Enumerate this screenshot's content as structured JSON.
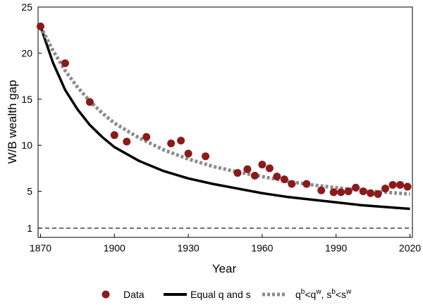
{
  "chart_data": {
    "type": "line",
    "xlabel": "Year",
    "ylabel": "W/B wealth gap",
    "xlim": [
      1869,
      2021
    ],
    "ylim": [
      0,
      25
    ],
    "xticks": [
      1870,
      1900,
      1930,
      1960,
      1990,
      2020
    ],
    "yticks": [
      1,
      5,
      10,
      15,
      20,
      25
    ],
    "grid": false,
    "legend_position": "bottom",
    "reference_line": {
      "y": 1,
      "style": "dashed",
      "color": "#000000"
    },
    "series": [
      {
        "name": "Data",
        "kind": "scatter",
        "color": "#8b1a1a",
        "x": [
          1870,
          1880,
          1890,
          1900,
          1905,
          1913,
          1923,
          1927,
          1930,
          1937,
          1950,
          1954,
          1957,
          1960,
          1963,
          1966,
          1969,
          1972,
          1978,
          1984,
          1989,
          1992,
          1995,
          1998,
          2001,
          2004,
          2007,
          2010,
          2013,
          2016,
          2019
        ],
        "y": [
          22.9,
          18.9,
          14.7,
          11.1,
          10.4,
          10.9,
          10.2,
          10.5,
          9.1,
          8.8,
          7.0,
          7.4,
          6.7,
          7.9,
          7.5,
          6.6,
          6.3,
          5.8,
          5.8,
          5.1,
          4.9,
          4.9,
          5.0,
          5.4,
          5.0,
          4.8,
          4.7,
          5.3,
          5.7,
          5.7,
          5.5
        ]
      },
      {
        "name": "Equal q and s",
        "kind": "line",
        "color": "#000000",
        "style": "solid",
        "x": [
          1870,
          1875,
          1880,
          1885,
          1890,
          1895,
          1900,
          1910,
          1920,
          1930,
          1940,
          1950,
          1960,
          1970,
          1980,
          1990,
          2000,
          2010,
          2020
        ],
        "y": [
          22.9,
          19.0,
          16.0,
          13.9,
          12.2,
          10.9,
          9.8,
          8.3,
          7.2,
          6.4,
          5.8,
          5.3,
          4.8,
          4.4,
          4.1,
          3.8,
          3.5,
          3.3,
          3.1
        ]
      },
      {
        "name": "q^b<q^w, s^b<s^w",
        "kind": "line",
        "color": "#8c8c8c",
        "style": "dotted",
        "x": [
          1870,
          1875,
          1880,
          1885,
          1890,
          1895,
          1900,
          1910,
          1920,
          1930,
          1940,
          1950,
          1960,
          1970,
          1980,
          1990,
          2000,
          2010,
          2020
        ],
        "y": [
          22.9,
          20.3,
          18.1,
          16.3,
          14.8,
          13.5,
          12.4,
          10.8,
          9.5,
          8.5,
          7.7,
          7.1,
          6.6,
          6.1,
          5.7,
          5.4,
          5.1,
          4.9,
          4.7
        ]
      }
    ]
  },
  "legend": {
    "data_label": "Data",
    "equal_label": "Equal q and s",
    "gap_q": "q",
    "gap_b1": "b",
    "gap_lt1": "<q",
    "gap_w1": "w",
    "gap_comma": ", s",
    "gap_b2": "b",
    "gap_lt2": "<s",
    "gap_w2": "w"
  }
}
